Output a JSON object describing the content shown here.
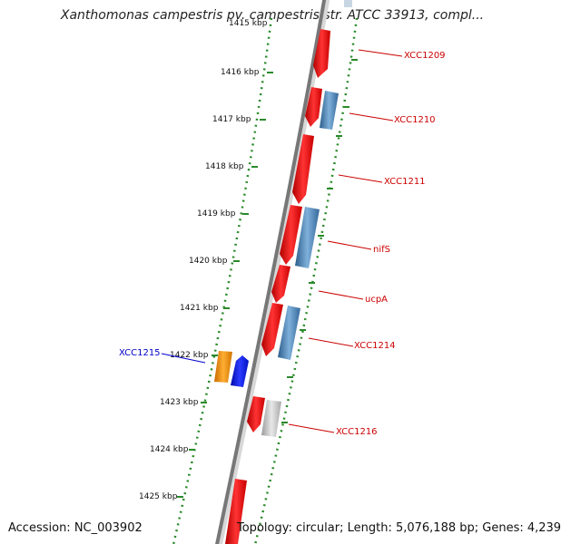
{
  "title": "Xanthomonas campestris pv. campestris str. ATCC 33913, compl...",
  "accession_text": "Accession: NC_003902",
  "summary_text": "Topology: circular; Length: 5,076,188 bp; Genes: 4,239",
  "top_cut_label": "1415 kbp",
  "ticks": [
    "1416 kbp",
    "1417 kbp",
    "1418 kbp",
    "1419 kbp",
    "1420 kbp",
    "1421 kbp",
    "1422 kbp",
    "1423 kbp",
    "1424 kbp",
    "1425 kbp"
  ],
  "gene_labels": [
    {
      "text": "XCC1209",
      "color": "#cc0000"
    },
    {
      "text": "XCC1210",
      "color": "#cc0000"
    },
    {
      "text": "XCC1211",
      "color": "#cc0000"
    },
    {
      "text": "nifS",
      "color": "#cc0000"
    },
    {
      "text": "ucpA",
      "color": "#cc0000"
    },
    {
      "text": "XCC1214",
      "color": "#cc0000"
    },
    {
      "text": "XCC1216",
      "color": "#cc0000"
    },
    {
      "text": "XCC1215",
      "color": "#0000cc"
    }
  ],
  "colors": {
    "backbone": "#777777",
    "dotted_track": "#2a8a2a",
    "cds_red": "#e31212",
    "cds_blue": "#4b86b8",
    "orange_feature": "#f08a00",
    "blue_feature": "#0a14e0",
    "gray_feature": "#bcbcbc"
  }
}
